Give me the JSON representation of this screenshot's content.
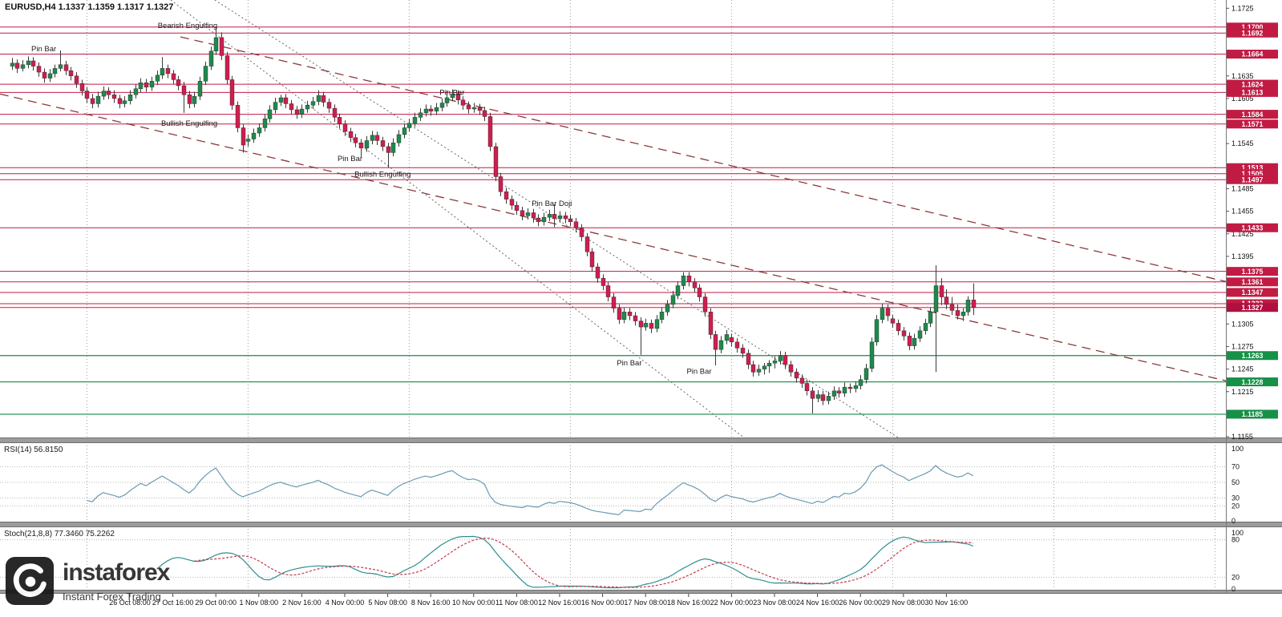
{
  "title": {
    "text": "EURUSD,H4 1.1337 1.1359 1.1317 1.1327"
  },
  "watermark": {
    "brand": "instaforex",
    "tagline": "Instant Forex Trading"
  },
  "chart_data": {
    "type": "candlestick",
    "symbol": "EURUSD",
    "timeframe": "H4",
    "current_bar": {
      "open": "1.1337",
      "high": "1.1359",
      "low": "1.1317",
      "close": "1.1327"
    },
    "price_axis": {
      "min": 1.1154,
      "max": 1.1736,
      "plain_ticks": [
        "1.1725",
        "1.1635",
        "1.1605",
        "1.1545",
        "1.1485",
        "1.1455",
        "1.1425",
        "1.1395",
        "1.1305",
        "1.1275",
        "1.1245",
        "1.1215",
        "1.1155"
      ]
    },
    "levels": {
      "resistance": [
        "1.1700",
        "1.1692",
        "1.1664",
        "1.1624",
        "1.1613",
        "1.1584",
        "1.1571",
        "1.1513",
        "1.1505",
        "1.1497",
        "1.1433",
        "1.1375",
        "1.1361",
        "1.1347",
        "1.1332"
      ],
      "support": [
        "1.1263",
        "1.1228",
        "1.1185"
      ],
      "current_price": "1.1327"
    },
    "time_axis": {
      "first_label_index": 22,
      "label_every": 8,
      "labels": [
        "26 Oct 08:00",
        "27 Oct 16:00",
        "29 Oct 00:00",
        "1 Nov 08:00",
        "2 Nov 16:00",
        "4 Nov 00:00",
        "5 Nov 08:00",
        "8 Nov 16:00",
        "10 Nov 00:00",
        "11 Nov 08:00",
        "12 Nov 16:00",
        "16 Nov 00:00",
        "17 Nov 08:00",
        "18 Nov 16:00",
        "22 Nov 00:00",
        "23 Nov 08:00",
        "24 Nov 16:00",
        "26 Nov 00:00",
        "29 Nov 08:00",
        "30 Nov 16:00"
      ]
    },
    "week_separator_indices": [
      14,
      44,
      74,
      104,
      134,
      164,
      194,
      224
    ],
    "trendlines": [
      {
        "id": "channel-upper",
        "style": "longdash",
        "i1": 31.4,
        "p1": 1.1687,
        "i2": 236.5,
        "p2": 1.1344
      },
      {
        "id": "channel-lower",
        "style": "longdash",
        "i1": -2.2,
        "p1": 1.1611,
        "i2": 236.5,
        "p2": 1.1212
      },
      {
        "id": "inner-channel-upper",
        "style": "dotted",
        "i1": 29.6,
        "p1": 1.1736,
        "i2": 136.3,
        "p2": 1.1154
      },
      {
        "id": "inner-channel-lower",
        "style": "dotted",
        "i1": 37.8,
        "p1": 1.1736,
        "i2": 165.0,
        "p2": 1.1154
      }
    ],
    "annotations": [
      {
        "text": "Pin Bar",
        "i": 8,
        "price": 1.1671
      },
      {
        "text": "Bearish Engulfing",
        "i": 38,
        "price": 1.1702
      },
      {
        "text": "Bullish Engulfing",
        "i": 38,
        "price": 1.1572
      },
      {
        "text": "Pin Bar",
        "i": 65,
        "price": 1.1525
      },
      {
        "text": "Bullish Engulfing",
        "i": 74,
        "price": 1.1504
      },
      {
        "text": "Pin Bar",
        "i": 84,
        "price": 1.1613
      },
      {
        "text": "Pin Bar Doji",
        "i": 104,
        "price": 1.1465
      },
      {
        "text": "Pin Bar",
        "i": 117,
        "price": 1.1253
      },
      {
        "text": "Pin Bar",
        "i": 130,
        "price": 1.1242
      }
    ],
    "indicators": [
      {
        "id": "rsi",
        "label": "RSI(14) 56.8150",
        "period": 14,
        "value": "56.8150",
        "axis_labels": [
          100,
          70,
          50,
          30,
          20,
          0
        ],
        "level_lines": [
          70,
          50,
          30,
          20
        ]
      },
      {
        "id": "stoch",
        "label": "Stoch(21,8,8) 77.3460 75.2262",
        "params": [
          21,
          8,
          8
        ],
        "k": "77.3460",
        "d": "75.2262",
        "axis_labels": [
          100,
          80,
          20,
          0
        ],
        "level_lines": [
          80,
          20
        ]
      }
    ],
    "colors": {
      "bull": "#1e8a4c",
      "bear": "#cf1d4f",
      "wick": "#3a3a3a",
      "resistance": "#c11b44",
      "support": "#168a47",
      "current": "#cf1d4f",
      "badge_red": "#c11b44",
      "badge_green": "#169148",
      "badge_current": "#b0103f",
      "trend": "#8b3a3a",
      "inner_trend": "#666666",
      "grid": "#9a9a9a",
      "rsi_line": "#6b9ab0",
      "stoch_main": "#2f8f8f",
      "stoch_signal": "#c23b4b",
      "separator": "#9b9b9b",
      "axis_text": "#111111"
    },
    "candles": [
      [
        1.1648,
        1.1659,
        1.1643,
        1.1652
      ],
      [
        1.1652,
        1.1657,
        1.1639,
        1.1645
      ],
      [
        1.1645,
        1.1656,
        1.1641,
        1.165
      ],
      [
        1.165,
        1.1661,
        1.1645,
        1.1655
      ],
      [
        1.1655,
        1.166,
        1.1642,
        1.1648
      ],
      [
        1.1648,
        1.1653,
        1.1634,
        1.164
      ],
      [
        1.164,
        1.1645,
        1.1626,
        1.1632
      ],
      [
        1.1632,
        1.1644,
        1.1627,
        1.1638
      ],
      [
        1.1638,
        1.165,
        1.1633,
        1.1645
      ],
      [
        1.1645,
        1.1669,
        1.1641,
        1.165
      ],
      [
        1.165,
        1.1655,
        1.1636,
        1.1642
      ],
      [
        1.1642,
        1.1647,
        1.1629,
        1.1635
      ],
      [
        1.1635,
        1.164,
        1.1619,
        1.1625
      ],
      [
        1.1625,
        1.163,
        1.1609,
        1.1615
      ],
      [
        1.1615,
        1.162,
        1.1599,
        1.1605
      ],
      [
        1.1605,
        1.1611,
        1.1592,
        1.1598
      ],
      [
        1.1598,
        1.1614,
        1.1593,
        1.1608
      ],
      [
        1.1608,
        1.1621,
        1.1603,
        1.1615
      ],
      [
        1.1615,
        1.162,
        1.1604,
        1.161
      ],
      [
        1.161,
        1.1616,
        1.1599,
        1.1605
      ],
      [
        1.1605,
        1.161,
        1.1592,
        1.1598
      ],
      [
        1.1598,
        1.1608,
        1.1593,
        1.1602
      ],
      [
        1.1602,
        1.1616,
        1.1597,
        1.161
      ],
      [
        1.161,
        1.1624,
        1.1605,
        1.1618
      ],
      [
        1.1618,
        1.1632,
        1.1613,
        1.1626
      ],
      [
        1.1626,
        1.1631,
        1.1614,
        1.162
      ],
      [
        1.162,
        1.1634,
        1.1615,
        1.1628
      ],
      [
        1.1628,
        1.1642,
        1.1623,
        1.1636
      ],
      [
        1.1636,
        1.166,
        1.1631,
        1.1645
      ],
      [
        1.1645,
        1.165,
        1.1632,
        1.1638
      ],
      [
        1.1638,
        1.1643,
        1.1624,
        1.163
      ],
      [
        1.163,
        1.1635,
        1.1616,
        1.1622
      ],
      [
        1.1622,
        1.1627,
        1.1586,
        1.161
      ],
      [
        1.161,
        1.1615,
        1.1592,
        1.1598
      ],
      [
        1.1598,
        1.1614,
        1.1593,
        1.1608
      ],
      [
        1.1608,
        1.1634,
        1.1603,
        1.1628
      ],
      [
        1.1628,
        1.1654,
        1.1623,
        1.1648
      ],
      [
        1.1648,
        1.1674,
        1.1643,
        1.1668
      ],
      [
        1.1668,
        1.17,
        1.1663,
        1.1686
      ],
      [
        1.1686,
        1.1693,
        1.1656,
        1.1662
      ],
      [
        1.1662,
        1.1667,
        1.1624,
        1.163
      ],
      [
        1.163,
        1.1635,
        1.159,
        1.1596
      ],
      [
        1.1596,
        1.1601,
        1.156,
        1.1566
      ],
      [
        1.1566,
        1.1571,
        1.1533,
        1.1543
      ],
      [
        1.1548,
        1.1557,
        1.1541,
        1.1551
      ],
      [
        1.1551,
        1.1565,
        1.1546,
        1.1559
      ],
      [
        1.1559,
        1.1572,
        1.1554,
        1.1566
      ],
      [
        1.1566,
        1.1584,
        1.1561,
        1.1578
      ],
      [
        1.1578,
        1.1596,
        1.1573,
        1.159
      ],
      [
        1.159,
        1.1606,
        1.1585,
        1.16
      ],
      [
        1.16,
        1.161,
        1.1595,
        1.1606
      ],
      [
        1.1606,
        1.1611,
        1.1592,
        1.1598
      ],
      [
        1.1598,
        1.1603,
        1.1584,
        1.159
      ],
      [
        1.159,
        1.1595,
        1.1578,
        1.1584
      ],
      [
        1.1584,
        1.1597,
        1.1579,
        1.1591
      ],
      [
        1.1591,
        1.1602,
        1.1586,
        1.1596
      ],
      [
        1.1596,
        1.1607,
        1.1591,
        1.1601
      ],
      [
        1.1601,
        1.1616,
        1.1596,
        1.1609
      ],
      [
        1.1609,
        1.1614,
        1.1594,
        1.16
      ],
      [
        1.16,
        1.1605,
        1.1586,
        1.1592
      ],
      [
        1.1592,
        1.1597,
        1.1574,
        1.158
      ],
      [
        1.158,
        1.1585,
        1.1565,
        1.1571
      ],
      [
        1.1571,
        1.1576,
        1.1555,
        1.1561
      ],
      [
        1.1561,
        1.1566,
        1.1547,
        1.1553
      ],
      [
        1.1553,
        1.1558,
        1.154,
        1.1546
      ],
      [
        1.1546,
        1.1551,
        1.1527,
        1.1539
      ],
      [
        1.1539,
        1.1555,
        1.1534,
        1.1549
      ],
      [
        1.1549,
        1.1562,
        1.1544,
        1.1556
      ],
      [
        1.1556,
        1.1561,
        1.1543,
        1.1549
      ],
      [
        1.1549,
        1.1554,
        1.1535,
        1.1541
      ],
      [
        1.1541,
        1.1546,
        1.1513,
        1.1533
      ],
      [
        1.1533,
        1.1552,
        1.1528,
        1.1546
      ],
      [
        1.1546,
        1.1563,
        1.1541,
        1.1557
      ],
      [
        1.1557,
        1.1572,
        1.1552,
        1.1566
      ],
      [
        1.1566,
        1.1578,
        1.1561,
        1.1572
      ],
      [
        1.1572,
        1.1586,
        1.1567,
        1.158
      ],
      [
        1.158,
        1.1592,
        1.1575,
        1.1586
      ],
      [
        1.1586,
        1.1597,
        1.1581,
        1.1591
      ],
      [
        1.1591,
        1.1596,
        1.1582,
        1.1588
      ],
      [
        1.1588,
        1.1599,
        1.1583,
        1.1593
      ],
      [
        1.1593,
        1.1605,
        1.1588,
        1.1599
      ],
      [
        1.1599,
        1.1616,
        1.1594,
        1.1606
      ],
      [
        1.1606,
        1.1617,
        1.1601,
        1.1611
      ],
      [
        1.1611,
        1.1616,
        1.1597,
        1.1603
      ],
      [
        1.1603,
        1.1608,
        1.159,
        1.1596
      ],
      [
        1.1596,
        1.1601,
        1.1585,
        1.1591
      ],
      [
        1.1591,
        1.1599,
        1.1586,
        1.1593
      ],
      [
        1.1593,
        1.1598,
        1.1583,
        1.1589
      ],
      [
        1.1589,
        1.1594,
        1.1575,
        1.1581
      ],
      [
        1.1581,
        1.1586,
        1.1535,
        1.1541
      ],
      [
        1.1541,
        1.1546,
        1.1495,
        1.1501
      ],
      [
        1.1501,
        1.1506,
        1.1475,
        1.1481
      ],
      [
        1.1481,
        1.1486,
        1.1465,
        1.1471
      ],
      [
        1.1471,
        1.1476,
        1.1457,
        1.1463
      ],
      [
        1.1463,
        1.1468,
        1.145,
        1.1456
      ],
      [
        1.1456,
        1.1461,
        1.1443,
        1.1449
      ],
      [
        1.1449,
        1.1459,
        1.1444,
        1.1453
      ],
      [
        1.1453,
        1.1458,
        1.144,
        1.1446
      ],
      [
        1.1446,
        1.1451,
        1.1435,
        1.1441
      ],
      [
        1.1441,
        1.1453,
        1.1436,
        1.1447
      ],
      [
        1.1447,
        1.1457,
        1.1442,
        1.1451
      ],
      [
        1.1451,
        1.1464,
        1.1434,
        1.1445
      ],
      [
        1.1445,
        1.1455,
        1.144,
        1.1449
      ],
      [
        1.1449,
        1.1454,
        1.1439,
        1.1445
      ],
      [
        1.1445,
        1.145,
        1.1435,
        1.1441
      ],
      [
        1.1441,
        1.1446,
        1.1427,
        1.1433
      ],
      [
        1.1433,
        1.1438,
        1.1415,
        1.1421
      ],
      [
        1.1421,
        1.1426,
        1.1395,
        1.1401
      ],
      [
        1.1401,
        1.1406,
        1.1375,
        1.1381
      ],
      [
        1.1381,
        1.1386,
        1.136,
        1.1366
      ],
      [
        1.1366,
        1.1371,
        1.135,
        1.1356
      ],
      [
        1.1356,
        1.1361,
        1.1335,
        1.1341
      ],
      [
        1.1341,
        1.1346,
        1.132,
        1.1326
      ],
      [
        1.1326,
        1.1331,
        1.1305,
        1.1311
      ],
      [
        1.1311,
        1.1327,
        1.1306,
        1.1321
      ],
      [
        1.1321,
        1.1326,
        1.131,
        1.1316
      ],
      [
        1.1316,
        1.1321,
        1.1303,
        1.1309
      ],
      [
        1.1309,
        1.1314,
        1.1264,
        1.1301
      ],
      [
        1.1301,
        1.1312,
        1.1296,
        1.1306
      ],
      [
        1.1306,
        1.1311,
        1.1293,
        1.1299
      ],
      [
        1.1299,
        1.1317,
        1.1294,
        1.1311
      ],
      [
        1.1311,
        1.1327,
        1.1306,
        1.1321
      ],
      [
        1.1321,
        1.1337,
        1.1316,
        1.1331
      ],
      [
        1.1331,
        1.1349,
        1.1326,
        1.1343
      ],
      [
        1.1343,
        1.1362,
        1.1338,
        1.1356
      ],
      [
        1.1356,
        1.1374,
        1.1351,
        1.1369
      ],
      [
        1.1369,
        1.1374,
        1.1355,
        1.1361
      ],
      [
        1.1361,
        1.1366,
        1.1347,
        1.1353
      ],
      [
        1.1353,
        1.1358,
        1.1335,
        1.1341
      ],
      [
        1.1341,
        1.1346,
        1.1315,
        1.1321
      ],
      [
        1.1321,
        1.1326,
        1.1285,
        1.1291
      ],
      [
        1.1291,
        1.1296,
        1.125,
        1.1271
      ],
      [
        1.1271,
        1.1289,
        1.1266,
        1.1283
      ],
      [
        1.1283,
        1.1297,
        1.1278,
        1.1291
      ],
      [
        1.1287,
        1.1292,
        1.1275,
        1.1281
      ],
      [
        1.1281,
        1.1286,
        1.1267,
        1.1273
      ],
      [
        1.1273,
        1.1278,
        1.126,
        1.1266
      ],
      [
        1.1266,
        1.1271,
        1.1245,
        1.1251
      ],
      [
        1.1251,
        1.1256,
        1.1235,
        1.1241
      ],
      [
        1.1241,
        1.1251,
        1.1236,
        1.1245
      ],
      [
        1.1245,
        1.1253,
        1.1238,
        1.1249
      ],
      [
        1.1249,
        1.1257,
        1.124,
        1.1253
      ],
      [
        1.1253,
        1.1262,
        1.1246,
        1.1256
      ],
      [
        1.1256,
        1.1269,
        1.1251,
        1.1263
      ],
      [
        1.1263,
        1.1268,
        1.1245,
        1.1251
      ],
      [
        1.1251,
        1.1256,
        1.1235,
        1.1241
      ],
      [
        1.1241,
        1.1246,
        1.1227,
        1.1233
      ],
      [
        1.1233,
        1.1238,
        1.122,
        1.1226
      ],
      [
        1.1226,
        1.1231,
        1.121,
        1.1216
      ],
      [
        1.1216,
        1.1221,
        1.1186,
        1.1206
      ],
      [
        1.1206,
        1.1217,
        1.1201,
        1.1211
      ],
      [
        1.1211,
        1.1216,
        1.1197,
        1.1203
      ],
      [
        1.1203,
        1.1215,
        1.1198,
        1.1209
      ],
      [
        1.1209,
        1.1222,
        1.1204,
        1.1216
      ],
      [
        1.1216,
        1.1221,
        1.1207,
        1.1213
      ],
      [
        1.1213,
        1.1227,
        1.1208,
        1.1221
      ],
      [
        1.1221,
        1.1226,
        1.1213,
        1.1219
      ],
      [
        1.1219,
        1.1229,
        1.1214,
        1.1223
      ],
      [
        1.1223,
        1.1237,
        1.1218,
        1.1231
      ],
      [
        1.1231,
        1.1252,
        1.1226,
        1.1246
      ],
      [
        1.1246,
        1.1287,
        1.1241,
        1.1281
      ],
      [
        1.1281,
        1.1317,
        1.1276,
        1.1311
      ],
      [
        1.1311,
        1.1332,
        1.1306,
        1.1326
      ],
      [
        1.1326,
        1.1331,
        1.1309,
        1.1316
      ],
      [
        1.1312,
        1.1317,
        1.13,
        1.1306
      ],
      [
        1.1306,
        1.1311,
        1.129,
        1.1296
      ],
      [
        1.1296,
        1.1301,
        1.1283,
        1.1289
      ],
      [
        1.1289,
        1.1294,
        1.127,
        1.1276
      ],
      [
        1.1276,
        1.1292,
        1.1271,
        1.1286
      ],
      [
        1.1286,
        1.1302,
        1.1281,
        1.1296
      ],
      [
        1.1296,
        1.1312,
        1.1291,
        1.1306
      ],
      [
        1.1306,
        1.1327,
        1.1301,
        1.1321
      ],
      [
        1.1321,
        1.1383,
        1.1241,
        1.1356
      ],
      [
        1.1356,
        1.1366,
        1.133,
        1.1341
      ],
      [
        1.1341,
        1.1351,
        1.1325,
        1.1331
      ],
      [
        1.1331,
        1.1341,
        1.1317,
        1.1323
      ],
      [
        1.1323,
        1.1331,
        1.1311,
        1.1316
      ],
      [
        1.1316,
        1.1326,
        1.1309,
        1.1321
      ],
      [
        1.1321,
        1.1342,
        1.1316,
        1.1337
      ],
      [
        1.1337,
        1.1359,
        1.1317,
        1.1327
      ]
    ]
  }
}
